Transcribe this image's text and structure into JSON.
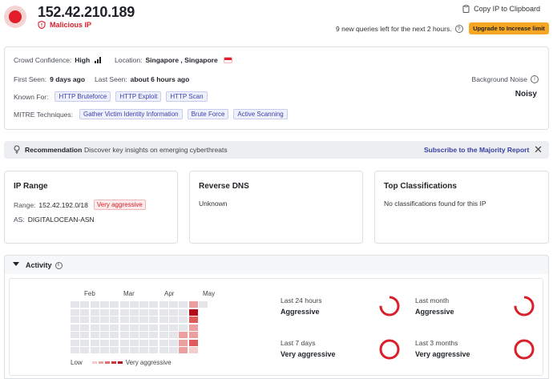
{
  "header": {
    "ip": "152.42.210.189",
    "status": "Malicious IP",
    "copy_label": "Copy IP to Clipboard",
    "queries_text": "9 new queries left for the next 2 hours.",
    "upgrade_label": "Upgrade to Increase limit",
    "colors": {
      "malicious": "#e11d2a",
      "upgrade": "#f5a623"
    }
  },
  "overview": {
    "confidence_label": "Crowd Confidence:",
    "confidence_value": "High",
    "location_label": "Location:",
    "location_value": "Singapore , Singapore",
    "first_seen_label": "First Seen:",
    "first_seen_value": "9 days ago",
    "last_seen_label": "Last Seen:",
    "last_seen_value": "about 6 hours ago",
    "known_for_label": "Known For:",
    "known_for": [
      "HTTP Bruteforce",
      "HTTP Exploit",
      "HTTP Scan"
    ],
    "mitre_label": "MITRE Techniques:",
    "mitre": [
      "Gather Victim Identity Information",
      "Brute Force",
      "Active Scanning"
    ],
    "noise_label": "Background Noise",
    "noise_value": "Noisy"
  },
  "recommendation": {
    "label": "Recommendation",
    "text": "Discover key insights on emerging cyberthreats",
    "link": "Subscribe to the Majority Report"
  },
  "ip_range": {
    "title": "IP Range",
    "range_label": "Range:",
    "range_value": "152.42.192.0/18",
    "range_badge": "Very aggressive",
    "as_label": "AS:",
    "as_value": "DIGITALOCEAN-ASN"
  },
  "reverse_dns": {
    "title": "Reverse DNS",
    "value": "Unknown"
  },
  "classifications": {
    "title": "Top Classifications",
    "value": "No classifications found for this IP"
  },
  "activity": {
    "title": "Activity",
    "months": [
      "Feb",
      "Mar",
      "Apr",
      "May"
    ],
    "legend_low": "Low",
    "legend_high": "Very aggressive",
    "heatmap": [
      [
        0,
        0,
        0,
        0,
        0,
        0,
        0,
        0,
        0,
        0,
        0,
        0,
        2,
        0
      ],
      [
        0,
        0,
        0,
        0,
        0,
        0,
        0,
        0,
        0,
        0,
        0,
        0,
        4
      ],
      [
        0,
        0,
        0,
        0,
        0,
        0,
        0,
        0,
        0,
        0,
        0,
        0,
        3
      ],
      [
        0,
        0,
        0,
        0,
        0,
        0,
        0,
        0,
        0,
        0,
        0,
        0,
        2
      ],
      [
        0,
        0,
        0,
        0,
        0,
        0,
        0,
        0,
        0,
        0,
        0,
        2,
        2
      ],
      [
        0,
        0,
        0,
        0,
        0,
        0,
        0,
        0,
        0,
        0,
        0,
        2,
        3
      ],
      [
        0,
        0,
        0,
        0,
        0,
        0,
        0,
        0,
        0,
        0,
        0,
        2,
        1
      ]
    ],
    "stats": [
      {
        "label": "Last 24 hours",
        "value": "Aggressive",
        "fill": 0.75
      },
      {
        "label": "Last month",
        "value": "Aggressive",
        "fill": 0.75
      },
      {
        "label": "Last 7 days",
        "value": "Very aggressive",
        "fill": 1.0
      },
      {
        "label": "Last 3 months",
        "value": "Very aggressive",
        "fill": 1.0
      }
    ]
  }
}
